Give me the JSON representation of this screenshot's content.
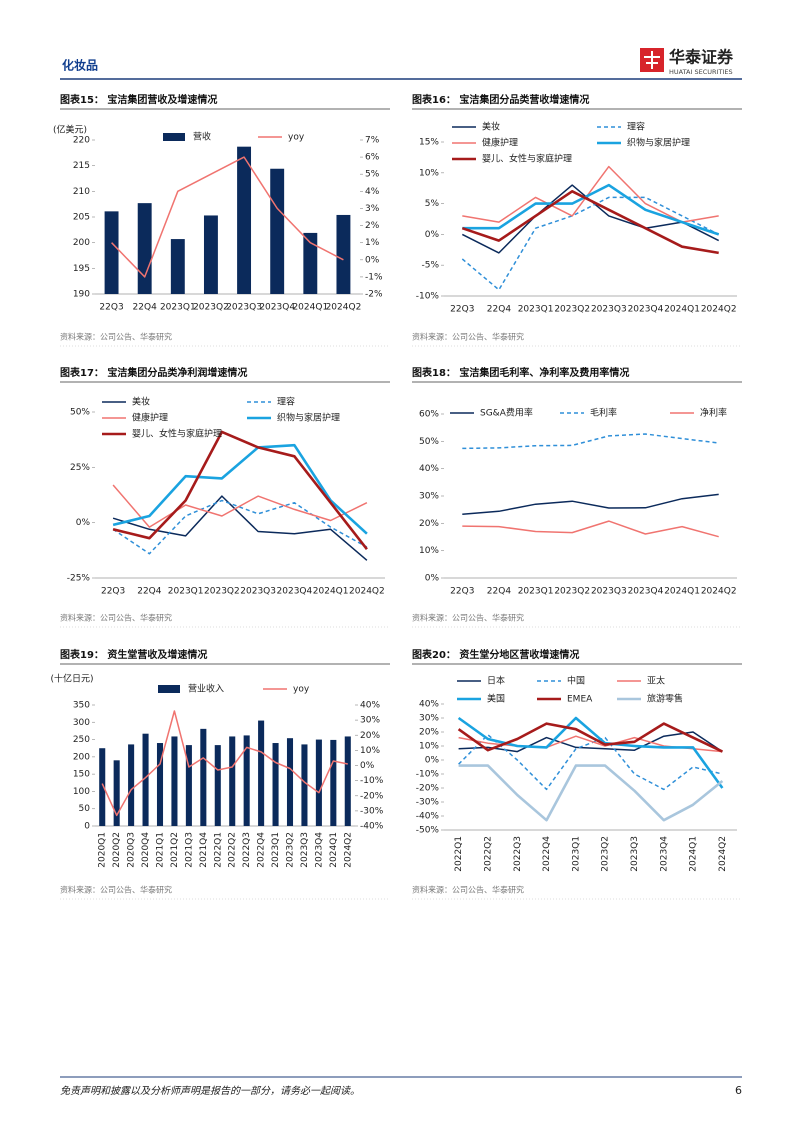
{
  "header": {
    "section": "化妆品",
    "logo_name": "华泰证券",
    "logo_sub": "HUATAI SECURITIES"
  },
  "footer": {
    "disclaimer": "免责声明和披露以及分析师声明是报告的一部分，请务必一起阅读。",
    "page": "6"
  },
  "chart_data": [
    {
      "type": "combo",
      "title": "图表15：  宝洁集团营收及增速情况",
      "y_label": "(亿美元)",
      "source": "资料来源：公司公告、华泰研究",
      "categories": [
        "22Q3",
        "22Q4",
        "2023Q1",
        "2023Q2",
        "2023Q3",
        "2023Q4",
        "2024Q1",
        "2024Q2"
      ],
      "series": [
        {
          "name": "营收",
          "type": "bar",
          "color": "#0b2a5b",
          "values": [
            206.1,
            207.7,
            200.7,
            205.3,
            218.7,
            214.4,
            201.9,
            205.4
          ]
        },
        {
          "name": "yoy",
          "type": "line",
          "axis": "y2",
          "color": "#f07470",
          "line_style": "solid",
          "values": [
            1,
            -1,
            4,
            5,
            6,
            3,
            1,
            0
          ]
        }
      ],
      "ylim": [
        190,
        220
      ],
      "yticks": [
        190,
        195,
        200,
        205,
        210,
        215,
        220
      ],
      "y2lim": [
        -2,
        7
      ],
      "y2ticks": [
        {
          "value": -2,
          "label": "-2%"
        },
        {
          "value": -1,
          "label": "-1%"
        },
        {
          "value": 0,
          "label": "0%"
        },
        {
          "value": 1,
          "label": "1%"
        },
        {
          "value": 2,
          "label": "2%"
        },
        {
          "value": 3,
          "label": "3%"
        },
        {
          "value": 4,
          "label": "4%"
        },
        {
          "value": 5,
          "label": "5%"
        },
        {
          "value": 6,
          "label": "6%"
        },
        {
          "value": 7,
          "label": "7%"
        }
      ]
    },
    {
      "type": "line",
      "title": "图表16：  宝洁集团分品类营收增速情况",
      "source": "资料来源：公司公告、华泰研究",
      "categories": [
        "22Q3",
        "22Q4",
        "2023Q1",
        "2023Q2",
        "2023Q3",
        "2023Q4",
        "2024Q1",
        "2024Q2"
      ],
      "series": [
        {
          "name": "美妆",
          "color": "#0b2a5b",
          "line_style": "solid",
          "values": [
            0,
            -3,
            3,
            8,
            3,
            1,
            2,
            -1
          ]
        },
        {
          "name": "理容",
          "color": "#2f8fd8",
          "line_style": "dashed",
          "values": [
            -4,
            -9,
            1,
            3,
            6,
            6,
            3,
            0
          ]
        },
        {
          "name": "健康护理",
          "color": "#f07470",
          "line_style": "solid",
          "values": [
            3,
            2,
            6,
            3,
            11,
            5,
            2,
            3
          ]
        },
        {
          "name": "织物与家居护理",
          "color": "#1aa3e0",
          "line_style": "thick",
          "values": [
            1,
            1,
            5,
            5,
            8,
            4,
            2,
            0
          ]
        },
        {
          "name": "婴儿、女性与家庭护理",
          "color": "#a61b1b",
          "line_style": "thick",
          "values": [
            1,
            -1,
            3,
            7,
            4,
            1,
            -2,
            -3
          ]
        }
      ],
      "ylim": [
        -10,
        15
      ],
      "yticks": [
        {
          "value": -10,
          "label": "-10%"
        },
        {
          "value": -5,
          "label": "-5%"
        },
        {
          "value": 0,
          "label": "0%"
        },
        {
          "value": 5,
          "label": "5%"
        },
        {
          "value": 10,
          "label": "10%"
        },
        {
          "value": 15,
          "label": "15%"
        }
      ]
    },
    {
      "type": "line",
      "title": "图表17：  宝洁集团分品类净利润增速情况",
      "source": "资料来源：公司公告、华泰研究",
      "categories": [
        "22Q3",
        "22Q4",
        "2023Q1",
        "2023Q2",
        "2023Q3",
        "2023Q4",
        "2024Q1",
        "2024Q2"
      ],
      "series": [
        {
          "name": "美妆",
          "color": "#0b2a5b",
          "line_style": "solid",
          "values": [
            2,
            -3,
            -6,
            12,
            -4,
            -5,
            -3,
            -17
          ]
        },
        {
          "name": "理容",
          "color": "#2f8fd8",
          "line_style": "dashed",
          "values": [
            -3,
            -14,
            3,
            10,
            4,
            9,
            -2,
            -11
          ]
        },
        {
          "name": "健康护理",
          "color": "#f07470",
          "line_style": "solid",
          "values": [
            17,
            -2,
            8,
            3,
            12,
            6,
            1,
            9
          ]
        },
        {
          "name": "织物与家居护理",
          "color": "#1aa3e0",
          "line_style": "thick",
          "values": [
            -1,
            3,
            21,
            20,
            34,
            35,
            10,
            -5
          ]
        },
        {
          "name": "婴儿、女性与家庭护理",
          "color": "#a61b1b",
          "line_style": "thick",
          "values": [
            -3,
            -7,
            10,
            41,
            34,
            30,
            9,
            -12
          ]
        }
      ],
      "ylim": [
        -25,
        50
      ],
      "yticks": [
        {
          "value": -25,
          "label": "-25%"
        },
        {
          "value": 0,
          "label": "0%"
        },
        {
          "value": 25,
          "label": "25%"
        },
        {
          "value": 50,
          "label": "50%"
        }
      ]
    },
    {
      "type": "line",
      "title": "图表18：  宝洁集团毛利率、净利率及费用率情况",
      "source": "资料来源：公司公告、华泰研究",
      "categories": [
        "22Q3",
        "22Q4",
        "2023Q1",
        "2023Q2",
        "2023Q3",
        "2023Q4",
        "2024Q1",
        "2024Q2"
      ],
      "series": [
        {
          "name": "SG&A费用率",
          "color": "#0b2a5b",
          "line_style": "solid",
          "values": [
            23.3,
            24.4,
            27,
            28.1,
            25.6,
            25.7,
            29,
            30.6
          ]
        },
        {
          "name": "毛利率",
          "color": "#2f8fd8",
          "line_style": "dashed",
          "values": [
            47.4,
            47.6,
            48.4,
            48.5,
            52,
            52.7,
            51,
            49.4
          ]
        },
        {
          "name": "净利率",
          "color": "#f07470",
          "line_style": "solid",
          "values": [
            19,
            18.8,
            17,
            16.6,
            20.8,
            16.1,
            18.8,
            15.1
          ]
        }
      ],
      "ylim": [
        0,
        60
      ],
      "yticks": [
        {
          "value": 0,
          "label": "0%"
        },
        {
          "value": 10,
          "label": "10%"
        },
        {
          "value": 20,
          "label": "20%"
        },
        {
          "value": 30,
          "label": "30%"
        },
        {
          "value": 40,
          "label": "40%"
        },
        {
          "value": 50,
          "label": "50%"
        },
        {
          "value": 60,
          "label": "60%"
        }
      ]
    },
    {
      "type": "combo",
      "title": "图表19：  资生堂营收及增速情况",
      "y_label": "(十亿日元)",
      "source": "资料来源：公司公告、华泰研究",
      "categories": [
        "2020Q1",
        "2020Q2",
        "2020Q3",
        "2020Q4",
        "2021Q1",
        "2021Q2",
        "2021Q3",
        "2021Q4",
        "2022Q1",
        "2022Q2",
        "2022Q3",
        "2022Q4",
        "2023Q1",
        "2023Q2",
        "2023Q3",
        "2023Q4",
        "2024Q1",
        "2024Q2"
      ],
      "series": [
        {
          "name": "营业收入",
          "type": "bar",
          "color": "#0b2a5b",
          "values": [
            225,
            190,
            236,
            267,
            240,
            259,
            234,
            281,
            234,
            259,
            262,
            305,
            240,
            254,
            236,
            250,
            249,
            259
          ]
        },
        {
          "name": "yoy",
          "type": "line",
          "axis": "y2",
          "color": "#f07470",
          "line_style": "solid",
          "values": [
            -12,
            -33,
            -16,
            -8,
            1,
            36,
            -1,
            5,
            -3,
            -1,
            12,
            9,
            2,
            -2,
            -11,
            -18,
            3,
            1
          ]
        }
      ],
      "ylim": [
        0,
        350
      ],
      "yticks": [
        0,
        50,
        100,
        150,
        200,
        250,
        300,
        350
      ],
      "y2lim": [
        -40,
        40
      ],
      "y2ticks": [
        {
          "value": -40,
          "label": "-40%"
        },
        {
          "value": -30,
          "label": "-30%"
        },
        {
          "value": -20,
          "label": "-20%"
        },
        {
          "value": -10,
          "label": "-10%"
        },
        {
          "value": 0,
          "label": "0%"
        },
        {
          "value": 10,
          "label": "10%"
        },
        {
          "value": 20,
          "label": "20%"
        },
        {
          "value": 30,
          "label": "30%"
        },
        {
          "value": 40,
          "label": "40%"
        }
      ]
    },
    {
      "type": "line",
      "title": "图表20：  资生堂分地区营收增速情况",
      "source": "资料来源：公司公告、华泰研究",
      "categories": [
        "2022Q1",
        "2022Q2",
        "2022Q3",
        "2022Q4",
        "2023Q1",
        "2023Q2",
        "2023Q3",
        "2023Q4",
        "2024Q1",
        "2024Q2"
      ],
      "series": [
        {
          "name": "日本",
          "color": "#0b2a5b",
          "line_style": "solid",
          "values": [
            8,
            9,
            6,
            16,
            9,
            8,
            7,
            17,
            20,
            6
          ]
        },
        {
          "name": "中国",
          "color": "#2f8fd8",
          "line_style": "dashed",
          "values": [
            -3,
            18,
            0,
            -21,
            8,
            16,
            -10,
            -21,
            -5,
            -10
          ]
        },
        {
          "name": "亚太",
          "color": "#f07470",
          "line_style": "solid",
          "values": [
            16,
            12,
            10,
            9,
            17,
            10,
            16,
            10,
            8,
            6
          ]
        },
        {
          "name": "美国",
          "color": "#1aa3e0",
          "line_style": "thick",
          "values": [
            30,
            15,
            10,
            9,
            30,
            12,
            10,
            9,
            9,
            -20
          ]
        },
        {
          "name": "EMEA",
          "color": "#a61b1b",
          "line_style": "thick",
          "values": [
            22,
            7,
            15,
            26,
            22,
            11,
            13,
            26,
            16,
            6
          ]
        },
        {
          "name": "旅游零售",
          "color": "#a9c6dd",
          "line_style": "thick",
          "values": [
            -4,
            -4,
            -25,
            -43,
            -4,
            -4,
            -22,
            -43,
            -32,
            -15
          ]
        }
      ],
      "ylim": [
        -50,
        40
      ],
      "yticks": [
        {
          "value": -50,
          "label": "-50%"
        },
        {
          "value": -40,
          "label": "-40%"
        },
        {
          "value": -30,
          "label": "-30%"
        },
        {
          "value": -20,
          "label": "-20%"
        },
        {
          "value": -10,
          "label": "-10%"
        },
        {
          "value": 0,
          "label": "0%"
        },
        {
          "value": 10,
          "label": "10%"
        },
        {
          "value": 20,
          "label": "20%"
        },
        {
          "value": 30,
          "label": "30%"
        },
        {
          "value": 40,
          "label": "40%"
        }
      ]
    }
  ]
}
